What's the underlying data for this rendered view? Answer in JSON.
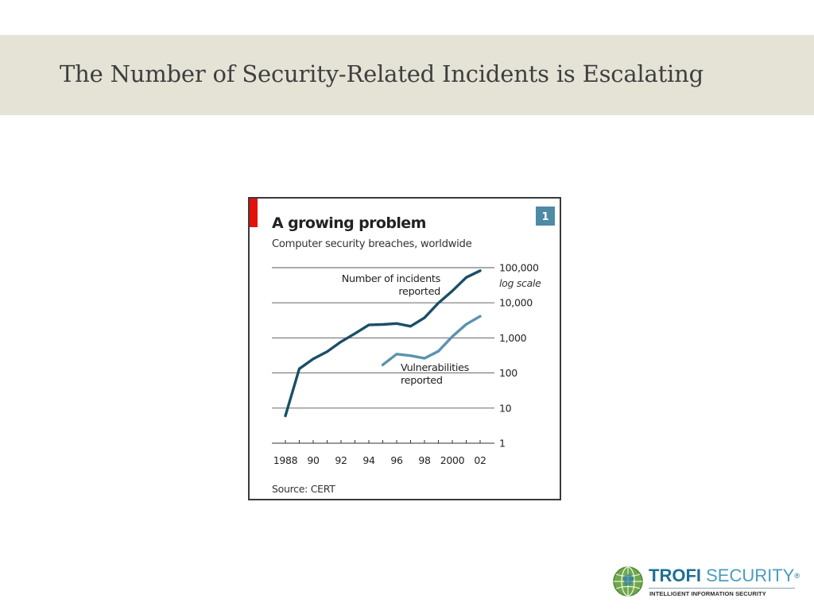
{
  "slide": {
    "title": "The Number of Security-Related Incidents is Escalating"
  },
  "chart_data": {
    "type": "line",
    "badge": "1",
    "title": "A growing problem",
    "subtitle": "Computer security breaches, worldwide",
    "scale_label": "log scale",
    "source": "Source: CERT",
    "y_scale": "log",
    "ylim": [
      1,
      100000
    ],
    "xlim": [
      1988,
      2003
    ],
    "y_ticks": [
      {
        "value": 100000,
        "label": "100,000"
      },
      {
        "value": 10000,
        "label": "10,000"
      },
      {
        "value": 1000,
        "label": "1,000"
      },
      {
        "value": 100,
        "label": "100"
      },
      {
        "value": 10,
        "label": "10"
      },
      {
        "value": 1,
        "label": "1"
      }
    ],
    "x_ticks": [
      {
        "value": 1988,
        "label": "1988"
      },
      {
        "value": 1990,
        "label": "90"
      },
      {
        "value": 1992,
        "label": "92"
      },
      {
        "value": 1994,
        "label": "94"
      },
      {
        "value": 1996,
        "label": "96"
      },
      {
        "value": 1998,
        "label": "98"
      },
      {
        "value": 2000,
        "label": "2000"
      },
      {
        "value": 2002,
        "label": "02"
      }
    ],
    "grid": true,
    "series": [
      {
        "name": "Number of incidents reported",
        "label_lines": [
          "Number of incidents",
          "reported"
        ],
        "color": "#1b4f66",
        "x": [
          1988,
          1989,
          1990,
          1991,
          1992,
          1993,
          1994,
          1995,
          1996,
          1997,
          1998,
          1999,
          2000,
          2001,
          2002
        ],
        "y": [
          6,
          132,
          252,
          406,
          773,
          1334,
          2340,
          2412,
          2573,
          2134,
          3734,
          9859,
          21756,
          52658,
          82094
        ]
      },
      {
        "name": "Vulnerabilities reported",
        "label_lines": [
          "Vulnerabilities",
          "reported"
        ],
        "color": "#5b93ae",
        "x": [
          1995,
          1996,
          1997,
          1998,
          1999,
          2000,
          2001,
          2002
        ],
        "y": [
          171,
          345,
          311,
          262,
          417,
          1090,
          2437,
          4129
        ]
      }
    ]
  },
  "logo": {
    "brand": "TROFI",
    "word": " SECURITY",
    "reg": "®",
    "tagline": "INTELLIGENT INFORMATION SECURITY",
    "colors": {
      "brand": "#1e6f93",
      "globe": "#6fa84a"
    }
  },
  "colors": {
    "header_band": "#e4e3d6",
    "accent_red": "#e3120b",
    "badge": "#4d8aa6"
  }
}
